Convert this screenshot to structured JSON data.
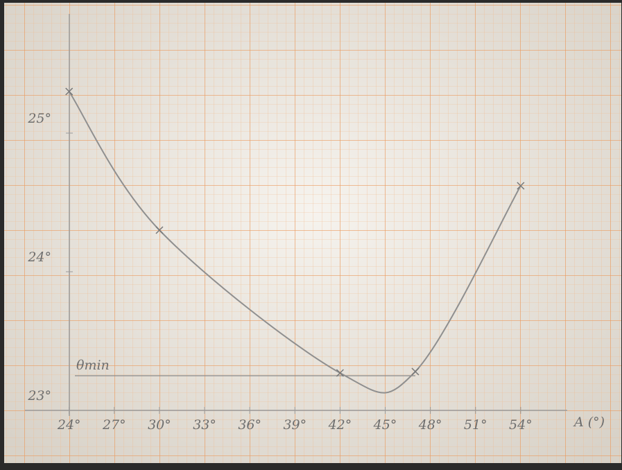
{
  "chart_data": {
    "type": "line",
    "x": [
      24,
      30,
      42,
      47,
      54
    ],
    "series": [
      {
        "name": "θ",
        "color": "#8f8f8f",
        "values": [
          25.3,
          24.3,
          23.27,
          23.28,
          24.62
        ]
      }
    ],
    "xlim": [
      23,
      57
    ],
    "ylim": [
      23,
      25.8
    ],
    "xticks": [
      {
        "value": 24,
        "label": "24°"
      },
      {
        "value": 27,
        "label": "27°"
      },
      {
        "value": 30,
        "label": "30°"
      },
      {
        "value": 33,
        "label": "33°"
      },
      {
        "value": 36,
        "label": "36°"
      },
      {
        "value": 39,
        "label": "39°"
      },
      {
        "value": 42,
        "label": "42°"
      },
      {
        "value": 45,
        "label": "45°"
      },
      {
        "value": 48,
        "label": "48°"
      },
      {
        "value": 51,
        "label": "51°"
      },
      {
        "value": 54,
        "label": "54°"
      }
    ],
    "yticks": [
      {
        "value": 23,
        "label": "23°"
      },
      {
        "value": 24,
        "label": "24°"
      },
      {
        "value": 25,
        "label": "25°"
      }
    ],
    "xlabel": "A (°)",
    "hline": {
      "value": 23.25,
      "label": "θmin"
    }
  }
}
